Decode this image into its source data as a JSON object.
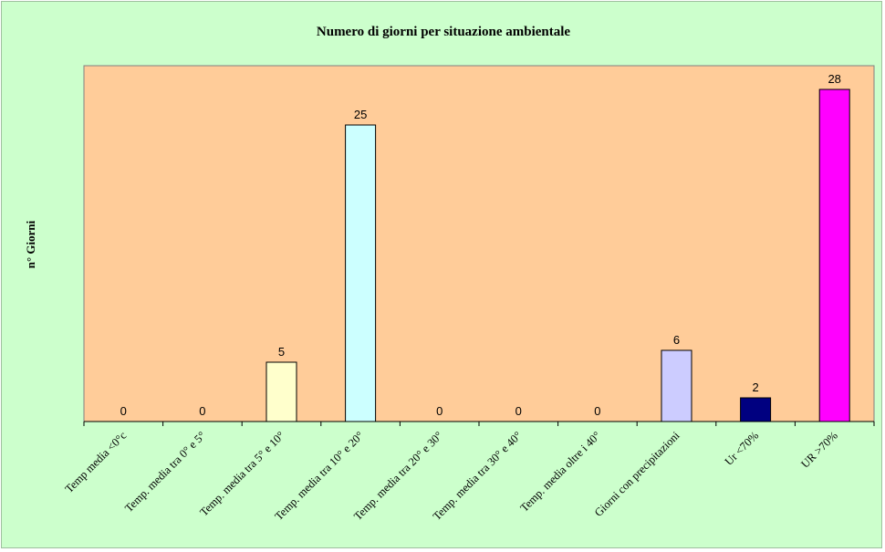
{
  "chart_data": {
    "type": "bar",
    "title": "Numero di giorni per situazione ambientale",
    "xlabel": "",
    "ylabel": "n° Giorni",
    "ylim": [
      0,
      30
    ],
    "grid": false,
    "legend": "none",
    "plot_background": "#ffcc99",
    "chart_background": "#ccffcc",
    "categories": [
      "Temp media <0°c",
      "Temp. media tra 0° e 5°",
      "Temp. media tra 5° e 10°",
      "Temp. media tra 10° e 20°",
      "Temp. media tra 20° e 30°",
      "Temp. media tra 30° e 40°",
      "Temp. media oltre i 40°",
      "Giorni con precipitazioni",
      "Ur  <70%",
      "UR >70%"
    ],
    "values": [
      0,
      0,
      5,
      25,
      0,
      0,
      0,
      6,
      2,
      28
    ],
    "bar_colors": [
      "#ffffcc",
      "#ffffcc",
      "#ffffcc",
      "#ccffff",
      "#ccffff",
      "#ccffff",
      "#ccffff",
      "#ccccff",
      "#000080",
      "#ff00ff"
    ],
    "data_labels": [
      "0",
      "0",
      "5",
      "25",
      "0",
      "0",
      "0",
      "6",
      "2",
      "28"
    ]
  }
}
